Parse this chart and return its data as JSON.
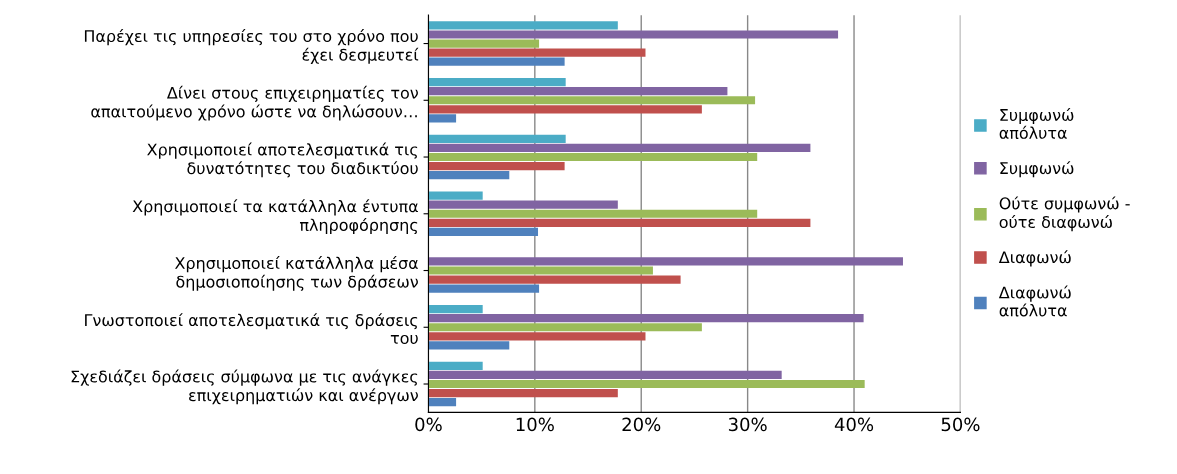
{
  "chart_data": {
    "type": "bar",
    "orientation": "horizontal",
    "categories": [
      "Παρέχει τις υπηρεσίες του στο χρόνο που\nέχει δεσμευτεί",
      "Δίνει στους επιχειρηματίες τον\nαπαιτούμενο χρόνο ώστε να δηλώσουν…",
      "Χρησιμοποιεί αποτελεσματικά τις\nδυνατότητες του διαδικτύου",
      "Χρησιμοποιεί τα κατάλληλα έντυπα\nπληροφόρησης",
      "Χρησιμοποιεί κατάλληλα μέσα\nδημοσιοποίησης των δράσεων",
      "Γνωστοποιεί αποτελεσματικά τις δράσεις\nτου",
      "Σχεδιάζει δράσεις σύμφωνα με τις ανάγκες\nεπιχειρηματιών και ανέργων"
    ],
    "series": [
      {
        "name": "Συμφωνώ\nαπόλυτα",
        "color": "#4bacc6",
        "values": [
          17.8,
          12.9,
          12.9,
          5.1,
          0,
          5.1,
          5.1
        ]
      },
      {
        "name": "Συμφωνώ",
        "color": "#8064a2",
        "values": [
          38.5,
          28.1,
          35.9,
          17.8,
          44.6,
          40.9,
          33.2
        ]
      },
      {
        "name": "Ούτε συμφωνώ -\nούτε διαφωνώ",
        "color": "#9bbb59",
        "values": [
          10.4,
          30.7,
          30.9,
          30.9,
          21.1,
          25.7,
          41.0
        ]
      },
      {
        "name": "Διαφωνώ",
        "color": "#c0504d",
        "values": [
          20.4,
          25.7,
          12.8,
          35.9,
          23.7,
          20.4,
          17.8
        ]
      },
      {
        "name": "Διαφωνώ\nαπόλυτα",
        "color": "#4f81bd",
        "values": [
          12.8,
          2.6,
          7.6,
          10.3,
          10.4,
          7.6,
          2.6
        ]
      }
    ],
    "xlim": [
      0,
      50
    ],
    "xticks": [
      {
        "value": 0,
        "label": "0%"
      },
      {
        "value": 10,
        "label": "10%"
      },
      {
        "value": 20,
        "label": "20%"
      },
      {
        "value": 30,
        "label": "30%"
      },
      {
        "value": 40,
        "label": "40%"
      },
      {
        "value": 50,
        "label": "50%"
      }
    ],
    "grid": "x",
    "legend": "right"
  }
}
